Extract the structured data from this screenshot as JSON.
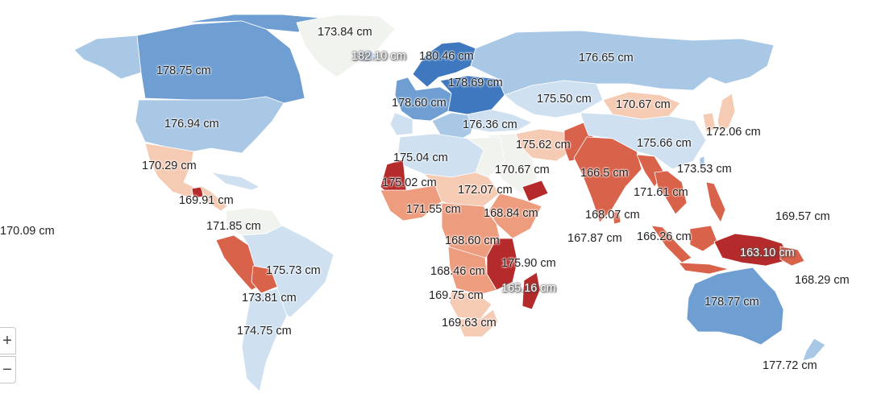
{
  "colors": {
    "ocean": "#ffffff",
    "deep_blue": "#3f78be",
    "mid_blue": "#6f9fd2",
    "light_blue": "#a9c8e6",
    "pale_blue": "#cfe1f1",
    "neutral": "#f1f3ef",
    "pale_red": "#f6cbb4",
    "light_red": "#ee9c7e",
    "mid_red": "#d9624a",
    "deep_red": "#b52a2a"
  },
  "zoom": {
    "in_label": "+",
    "out_label": "−"
  },
  "labels": [
    {
      "id": "greenland",
      "text": "173.84 cm",
      "halo": false
    },
    {
      "id": "iceland",
      "text": "182.10 cm",
      "halo": true
    },
    {
      "id": "scandinavia",
      "text": "180.46 cm",
      "halo": false
    },
    {
      "id": "russia",
      "text": "176.65 cm",
      "halo": false
    },
    {
      "id": "canada",
      "text": "178.75 cm",
      "halo": false
    },
    {
      "id": "central-europe",
      "text": "178.69 cm",
      "halo": false
    },
    {
      "id": "western-europe",
      "text": "178.60 cm",
      "halo": false
    },
    {
      "id": "kazakhstan",
      "text": "175.50 cm",
      "halo": false
    },
    {
      "id": "mongolia",
      "text": "170.67 cm",
      "halo": false
    },
    {
      "id": "usa",
      "text": "176.94 cm",
      "halo": false
    },
    {
      "id": "turkey",
      "text": "176.36 cm",
      "halo": false
    },
    {
      "id": "korea-japan",
      "text": "172.06 cm",
      "halo": false
    },
    {
      "id": "iran",
      "text": "175.62 cm",
      "halo": false
    },
    {
      "id": "china",
      "text": "175.66 cm",
      "halo": false
    },
    {
      "id": "north-africa",
      "text": "175.04 cm",
      "halo": false
    },
    {
      "id": "mexico",
      "text": "170.29 cm",
      "halo": false
    },
    {
      "id": "egypt-sudan",
      "text": "170.67 cm",
      "halo": false
    },
    {
      "id": "india",
      "text": "166.5 cm",
      "halo": false
    },
    {
      "id": "taiwan",
      "text": "173.53 cm",
      "halo": false
    },
    {
      "id": "mauritania",
      "text": "175.02 cm",
      "halo": false
    },
    {
      "id": "sahel",
      "text": "172.07 cm",
      "halo": false
    },
    {
      "id": "thailand",
      "text": "171.61 cm",
      "halo": false
    },
    {
      "id": "central-america",
      "text": "169.91 cm",
      "halo": false
    },
    {
      "id": "pacific",
      "text": "169.57 cm",
      "halo": false
    },
    {
      "id": "west-africa",
      "text": "171.55 cm",
      "halo": false
    },
    {
      "id": "horn-africa",
      "text": "168.84 cm",
      "halo": false
    },
    {
      "id": "sri-lanka",
      "text": "168.07 cm",
      "halo": false
    },
    {
      "id": "hawaii",
      "text": "170.09 cm",
      "halo": false
    },
    {
      "id": "colombia",
      "text": "171.85 cm",
      "halo": false
    },
    {
      "id": "maldives",
      "text": "167.87 cm",
      "halo": false
    },
    {
      "id": "malaysia",
      "text": "166.26 cm",
      "halo": false
    },
    {
      "id": "central-africa",
      "text": "168.60 cm",
      "halo": false
    },
    {
      "id": "indonesia-east",
      "text": "163.10 cm",
      "halo": true
    },
    {
      "id": "brazil",
      "text": "175.73 cm",
      "halo": false
    },
    {
      "id": "east-africa",
      "text": "175.90 cm",
      "halo": false
    },
    {
      "id": "angola",
      "text": "168.46 cm",
      "halo": false
    },
    {
      "id": "png",
      "text": "168.29 cm",
      "halo": false
    },
    {
      "id": "madagascar",
      "text": "165.16 cm",
      "halo": true
    },
    {
      "id": "peru-bolivia",
      "text": "173.81 cm",
      "halo": false
    },
    {
      "id": "namibia",
      "text": "169.75 cm",
      "halo": false
    },
    {
      "id": "australia",
      "text": "178.77 cm",
      "halo": false
    },
    {
      "id": "south-africa",
      "text": "169.63 cm",
      "halo": false
    },
    {
      "id": "argentina",
      "text": "174.75 cm",
      "halo": false
    },
    {
      "id": "new-zealand",
      "text": "177.72 cm",
      "halo": false
    }
  ]
}
